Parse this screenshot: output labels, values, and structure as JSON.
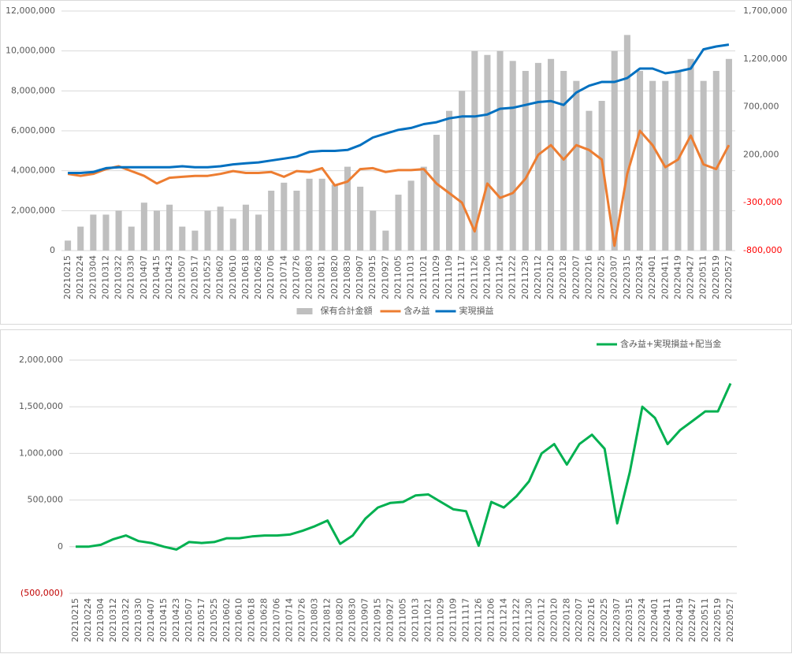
{
  "chart_data": [
    {
      "type": "combo",
      "categories": [
        "20210215",
        "20210224",
        "20210304",
        "20210312",
        "20210322",
        "20210330",
        "20210407",
        "20210415",
        "20210423",
        "20210507",
        "20210517",
        "20210525",
        "20210602",
        "20210610",
        "20210618",
        "20210628",
        "20210706",
        "20210714",
        "20210726",
        "20210803",
        "20210812",
        "20210820",
        "20210830",
        "20210907",
        "20210915",
        "20210927",
        "20211005",
        "20211013",
        "20211021",
        "20211029",
        "20211109",
        "20211117",
        "20211126",
        "20211206",
        "20211214",
        "20211222",
        "20211230",
        "20220112",
        "20220120",
        "20220128",
        "20220207",
        "20220216",
        "20220225",
        "20220307",
        "20220315",
        "20220324",
        "20220401",
        "20220411",
        "20220419",
        "20220427",
        "20220511",
        "20220519",
        "20220527"
      ],
      "series": [
        {
          "name": "保有合計金額",
          "type": "bar",
          "color": "#bfbfbf",
          "values": [
            500000,
            1200000,
            1800000,
            1800000,
            2000000,
            1200000,
            2400000,
            2000000,
            2300000,
            1200000,
            1000000,
            2000000,
            2200000,
            1600000,
            2300000,
            1800000,
            3000000,
            3400000,
            3000000,
            3600000,
            3600000,
            3300000,
            4200000,
            3200000,
            2000000,
            1000000,
            2800000,
            3500000,
            4200000,
            5800000,
            7000000,
            8000000,
            10000000,
            9800000,
            10000000,
            9500000,
            9000000,
            9400000,
            9600000,
            9000000,
            8500000,
            7000000,
            7500000,
            10000000,
            10800000,
            9000000,
            8500000,
            8500000,
            9000000,
            9600000,
            8500000,
            9000000,
            9600000
          ]
        },
        {
          "name": "含み益",
          "type": "line",
          "axis": "y2",
          "color": "#ed7d31",
          "values": [
            0,
            -20000,
            0,
            50000,
            80000,
            30000,
            -20000,
            -100000,
            -40000,
            -30000,
            -20000,
            -20000,
            0,
            30000,
            10000,
            10000,
            20000,
            -30000,
            30000,
            20000,
            60000,
            -120000,
            -80000,
            50000,
            60000,
            20000,
            40000,
            40000,
            50000,
            -100000,
            -200000,
            -300000,
            -600000,
            -100000,
            -250000,
            -200000,
            -50000,
            200000,
            300000,
            150000,
            300000,
            250000,
            150000,
            -750000,
            0,
            450000,
            300000,
            70000,
            150000,
            400000,
            100000,
            50000,
            300000
          ]
        },
        {
          "name": "実現損益",
          "type": "line",
          "axis": "y2",
          "color": "#0070c0",
          "values": [
            10000,
            10000,
            20000,
            60000,
            70000,
            70000,
            70000,
            70000,
            70000,
            80000,
            70000,
            70000,
            80000,
            100000,
            110000,
            120000,
            140000,
            160000,
            180000,
            230000,
            240000,
            240000,
            250000,
            300000,
            380000,
            420000,
            460000,
            480000,
            520000,
            540000,
            580000,
            600000,
            600000,
            620000,
            680000,
            690000,
            720000,
            750000,
            760000,
            720000,
            850000,
            920000,
            960000,
            960000,
            1000000,
            1100000,
            1100000,
            1050000,
            1070000,
            1100000,
            1300000,
            1330000,
            1350000
          ]
        }
      ],
      "ylim": [
        0,
        12000000
      ],
      "yticks": [
        0,
        {
          "value": 2000000,
          "label": "2,000,000"
        },
        {
          "value": 4000000,
          "label": "4,000,000"
        },
        {
          "value": 6000000,
          "label": "6,000,000"
        },
        {
          "value": 8000000,
          "label": "8,000,000"
        },
        {
          "value": 10000000,
          "label": "10,000,000"
        },
        {
          "value": 12000000,
          "label": "12,000,000"
        }
      ],
      "y2lim": [
        -800000,
        1700000
      ],
      "y2ticks": [
        {
          "value": -800000,
          "label": "-800,000"
        },
        {
          "value": -300000,
          "label": "-300,000"
        },
        {
          "value": 200000,
          "label": "200,000"
        },
        {
          "value": 700000,
          "label": "700,000"
        },
        {
          "value": 1200000,
          "label": "1,200,000"
        },
        {
          "value": 1700000,
          "label": "1,700,000"
        }
      ],
      "negative_tick_color": "#ff0000",
      "grid": true,
      "legend": "bottom"
    },
    {
      "type": "line",
      "categories": [
        "20210215",
        "20210224",
        "20210304",
        "20210312",
        "20210322",
        "20210330",
        "20210407",
        "20210415",
        "20210423",
        "20210507",
        "20210517",
        "20210525",
        "20210602",
        "20210610",
        "20210618",
        "20210628",
        "20210706",
        "20210714",
        "20210726",
        "20210803",
        "20210812",
        "20210820",
        "20210830",
        "20210907",
        "20210915",
        "20210927",
        "20211005",
        "20211013",
        "20211021",
        "20211029",
        "20211109",
        "20211117",
        "20211126",
        "20211206",
        "20211214",
        "20211222",
        "20211230",
        "20220112",
        "20220120",
        "20220128",
        "20220207",
        "20220216",
        "20220225",
        "20220307",
        "20220315",
        "20220324",
        "20220401",
        "20220411",
        "20220419",
        "20220427",
        "20220511",
        "20220519",
        "20220527"
      ],
      "series": [
        {
          "name": "含み益+実現損益+配当金",
          "type": "line",
          "color": "#00b050",
          "values": [
            0,
            0,
            20000,
            80000,
            120000,
            60000,
            40000,
            0,
            -30000,
            50000,
            40000,
            50000,
            90000,
            90000,
            110000,
            120000,
            120000,
            130000,
            170000,
            220000,
            280000,
            30000,
            120000,
            300000,
            420000,
            470000,
            480000,
            550000,
            560000,
            480000,
            400000,
            380000,
            10000,
            480000,
            420000,
            540000,
            700000,
            1000000,
            1100000,
            880000,
            1100000,
            1200000,
            1050000,
            250000,
            800000,
            1500000,
            1380000,
            1100000,
            1250000,
            1350000,
            1450000,
            1450000,
            1750000
          ]
        }
      ],
      "ylim": [
        -500000,
        2000000
      ],
      "yticks": [
        {
          "value": -500000,
          "label": "(500,000)"
        },
        0,
        {
          "value": 500000,
          "label": "500,000"
        },
        {
          "value": 1000000,
          "label": "1,000,000"
        },
        {
          "value": 1500000,
          "label": "1,500,000"
        },
        {
          "value": 2000000,
          "label": "2,000,000"
        }
      ],
      "negative_tick_color": "#c00000",
      "grid": true,
      "legend": "top-right"
    }
  ]
}
